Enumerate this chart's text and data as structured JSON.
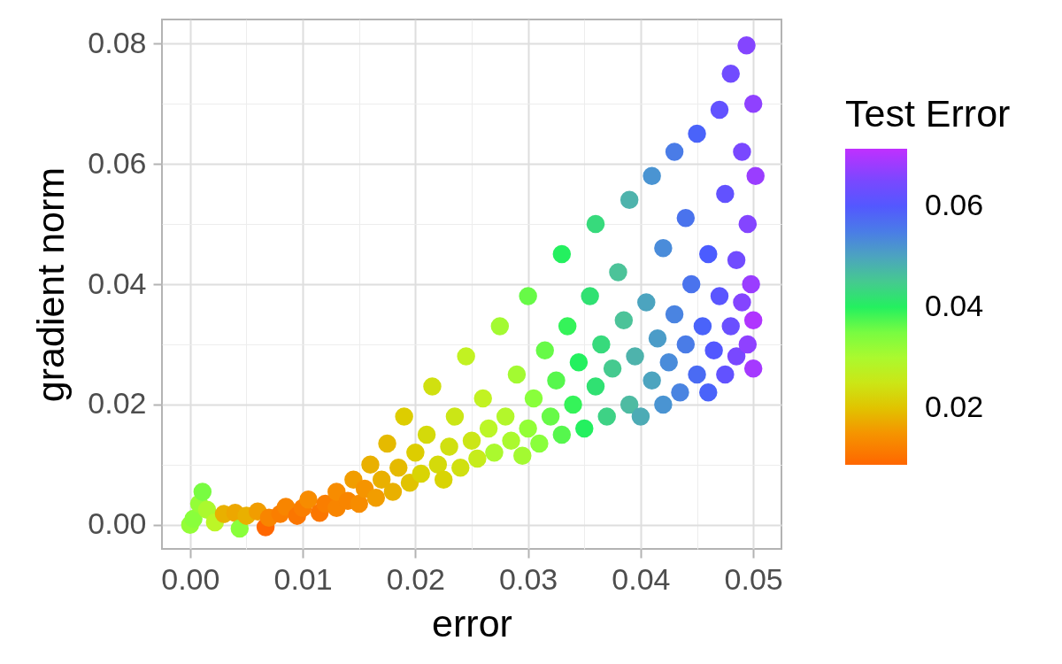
{
  "chart_data": {
    "type": "scatter",
    "xlabel": "error",
    "ylabel": "gradient norm",
    "legend_title": "Test Error",
    "marker": "circle",
    "grid": true,
    "xlim": [
      -0.0025,
      0.0525
    ],
    "ylim": [
      -0.004,
      0.084
    ],
    "xticks": [
      {
        "value": 0,
        "label": "0.00"
      },
      {
        "value": 0.005,
        "label": null
      },
      0.01,
      {
        "value": 0.015,
        "label": null
      },
      0.02,
      {
        "value": 0.025,
        "label": null
      },
      0.03,
      {
        "value": 0.035,
        "label": null
      },
      0.04,
      {
        "value": 0.045,
        "label": null
      },
      0.05
    ],
    "yticks": [
      {
        "value": 0,
        "label": "0.00"
      },
      {
        "value": 0.01,
        "label": null
      },
      0.02,
      {
        "value": 0.03,
        "label": null
      },
      0.04,
      {
        "value": 0.05,
        "label": null
      },
      0.06,
      {
        "value": 0.07,
        "label": null
      },
      0.08
    ],
    "clim": [
      0.0088,
      0.0714
    ],
    "cticks": [
      0.02,
      0.04,
      0.06
    ],
    "x": [
      0.0,
      0.0003,
      0.0008,
      0.0011,
      0.0015,
      0.0022,
      0.003,
      0.004,
      0.0044,
      0.005,
      0.006,
      0.0067,
      0.007,
      0.008,
      0.0085,
      0.0095,
      0.01,
      0.0105,
      0.0115,
      0.012,
      0.013,
      0.013,
      0.014,
      0.0145,
      0.015,
      0.0155,
      0.016,
      0.0165,
      0.017,
      0.0175,
      0.018,
      0.0185,
      0.019,
      0.0195,
      0.02,
      0.0205,
      0.021,
      0.0215,
      0.022,
      0.0225,
      0.023,
      0.0235,
      0.024,
      0.0245,
      0.025,
      0.0255,
      0.026,
      0.0265,
      0.027,
      0.0275,
      0.028,
      0.0285,
      0.029,
      0.0295,
      0.03,
      0.03,
      0.0305,
      0.031,
      0.0315,
      0.032,
      0.0325,
      0.033,
      0.033,
      0.0335,
      0.034,
      0.0345,
      0.035,
      0.0355,
      0.036,
      0.036,
      0.0365,
      0.037,
      0.0375,
      0.038,
      0.0385,
      0.039,
      0.039,
      0.0395,
      0.04,
      0.0405,
      0.041,
      0.041,
      0.0415,
      0.042,
      0.042,
      0.0425,
      0.043,
      0.043,
      0.0435,
      0.044,
      0.044,
      0.0445,
      0.045,
      0.045,
      0.0455,
      0.046,
      0.046,
      0.0465,
      0.047,
      0.047,
      0.0475,
      0.0475,
      0.048,
      0.048,
      0.0485,
      0.0485,
      0.049,
      0.049,
      0.0494,
      0.0495,
      0.0495,
      0.0498,
      0.05,
      0.05,
      0.05,
      0.0502
    ],
    "values": [
      0.0,
      0.001,
      0.0035,
      0.0055,
      0.0025,
      0.0004,
      0.0018,
      0.002,
      -0.0006,
      0.0015,
      0.0022,
      -0.0004,
      0.0012,
      0.0018,
      0.003,
      0.0015,
      0.0028,
      0.0042,
      0.002,
      0.0035,
      0.0028,
      0.0055,
      0.004,
      0.0075,
      0.0035,
      0.006,
      0.01,
      0.0045,
      0.0075,
      0.0135,
      0.0055,
      0.0095,
      0.018,
      0.007,
      0.012,
      0.0085,
      0.015,
      0.023,
      0.01,
      0.0075,
      0.013,
      0.018,
      0.0095,
      0.028,
      0.014,
      0.011,
      0.021,
      0.016,
      0.012,
      0.033,
      0.018,
      0.014,
      0.025,
      0.0115,
      0.016,
      0.038,
      0.021,
      0.0135,
      0.029,
      0.018,
      0.024,
      0.015,
      0.045,
      0.033,
      0.02,
      0.027,
      0.016,
      0.038,
      0.023,
      0.05,
      0.03,
      0.018,
      0.026,
      0.042,
      0.034,
      0.02,
      0.054,
      0.028,
      0.018,
      0.037,
      0.024,
      0.058,
      0.031,
      0.046,
      0.02,
      0.027,
      0.035,
      0.062,
      0.022,
      0.03,
      0.051,
      0.04,
      0.025,
      0.065,
      0.033,
      0.045,
      0.022,
      0.029,
      0.038,
      0.069,
      0.055,
      0.025,
      0.033,
      0.075,
      0.044,
      0.028,
      0.037,
      0.062,
      0.0797,
      0.03,
      0.05,
      0.04,
      0.026,
      0.034,
      0.07,
      0.058
    ],
    "cvalues": [
      0.033,
      0.034,
      0.033,
      0.035,
      0.03,
      0.028,
      0.018,
      0.017,
      0.034,
      0.018,
      0.016,
      0.009,
      0.013,
      0.012,
      0.013,
      0.011,
      0.012,
      0.014,
      0.011,
      0.012,
      0.013,
      0.014,
      0.013,
      0.016,
      0.014,
      0.015,
      0.018,
      0.016,
      0.018,
      0.019,
      0.018,
      0.019,
      0.021,
      0.02,
      0.021,
      0.022,
      0.023,
      0.024,
      0.023,
      0.022,
      0.024,
      0.025,
      0.024,
      0.027,
      0.025,
      0.026,
      0.027,
      0.028,
      0.03,
      0.031,
      0.029,
      0.03,
      0.031,
      0.031,
      0.033,
      0.036,
      0.034,
      0.034,
      0.036,
      0.036,
      0.037,
      0.037,
      0.04,
      0.039,
      0.039,
      0.04,
      0.04,
      0.042,
      0.042,
      0.043,
      0.043,
      0.044,
      0.045,
      0.046,
      0.046,
      0.047,
      0.048,
      0.048,
      0.049,
      0.05,
      0.05,
      0.052,
      0.051,
      0.053,
      0.052,
      0.053,
      0.054,
      0.055,
      0.054,
      0.055,
      0.056,
      0.056,
      0.057,
      0.058,
      0.058,
      0.059,
      0.058,
      0.06,
      0.061,
      0.062,
      0.062,
      0.062,
      0.063,
      0.064,
      0.064,
      0.065,
      0.066,
      0.065,
      0.066,
      0.067,
      0.066,
      0.068,
      0.069,
      0.07,
      0.067,
      0.068
    ]
  }
}
